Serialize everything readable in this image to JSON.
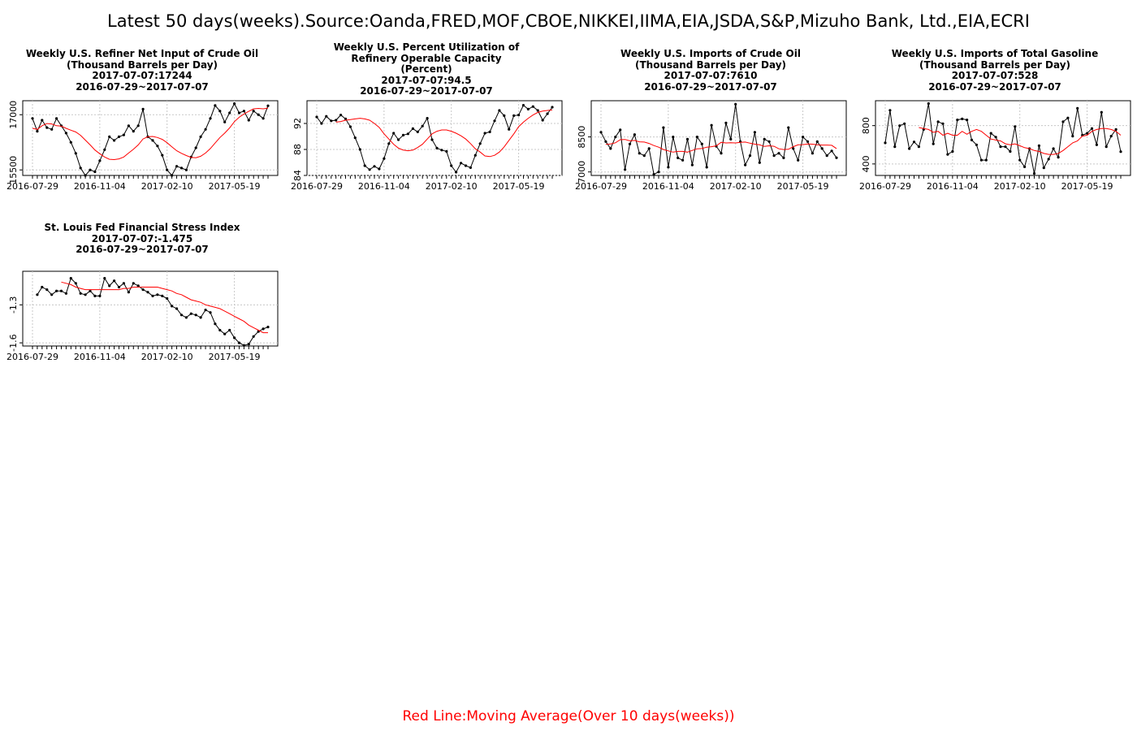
{
  "page": {
    "title": "Latest 50 days(weeks).Source:Oanda,FRED,MOF,CBOE,NIKKEI,IIMA,EIA,JSDA,S&P,Mizuho Bank, Ltd.,EIA,ECRI",
    "footer": "Red Line:Moving Average(Over 10 days(weeks))"
  },
  "colors": {
    "series": "#000000",
    "moving_average": "#ff0000",
    "grid": "#c8c8c8",
    "footer": "#ff0000"
  },
  "chart_data": [
    {
      "type": "line",
      "title_lines": [
        "Weekly U.S. Refiner Net Input of Crude Oil",
        "(Thousand Barrels per Day)",
        "2017-07-07:17244",
        "2016-07-29~2017-07-07"
      ],
      "x_start": "2016-07-29",
      "x_end": "2017-07-07",
      "x_ticks": [
        "2016-07-29",
        "2016-11-04",
        "2017-02-10",
        "2017-05-19"
      ],
      "y_ticks": [
        "15500",
        "17000"
      ],
      "ylim": [
        15350,
        17380
      ],
      "grid": true,
      "series": [
        {
          "name": "",
          "values": [
            16900,
            16550,
            16850,
            16650,
            16600,
            16900,
            16700,
            16500,
            16250,
            15950,
            15550,
            15350,
            15500,
            15450,
            15750,
            16050,
            16400,
            16300,
            16400,
            16450,
            16700,
            16550,
            16700,
            17150,
            16400,
            16300,
            16150,
            15900,
            15500,
            15350,
            15600,
            15550,
            15500,
            15850,
            16100,
            16400,
            16600,
            16900,
            17250,
            17100,
            16800,
            17050,
            17300,
            17050,
            17100,
            16850,
            17100,
            17000,
            16900,
            17244
          ]
        },
        {
          "name": "",
          "values": [
            16630,
            16600,
            16700,
            16760,
            16750,
            16700,
            16690,
            16630,
            16580,
            16530,
            16440,
            16310,
            16180,
            16040,
            15940,
            15850,
            15790,
            15780,
            15800,
            15850,
            15960,
            16060,
            16180,
            16340,
            16400,
            16410,
            16380,
            16330,
            16240,
            16130,
            16020,
            15950,
            15890,
            15840,
            15830,
            15870,
            15960,
            16080,
            16230,
            16380,
            16500,
            16640,
            16810,
            16930,
            17020,
            17090,
            17160,
            17170,
            17160,
            17180
          ]
        }
      ]
    },
    {
      "type": "line",
      "title_lines": [
        "Weekly U.S. Percent Utilization of",
        "Refinery Operable Capacity",
        "(Percent)",
        "2017-07-07:94.5",
        "2016-07-29~2017-07-07"
      ],
      "x_start": "2016-07-29",
      "x_end": "2017-07-07",
      "x_ticks": [
        "2016-07-29",
        "2016-11-04",
        "2017-02-10",
        "2017-05-19"
      ],
      "y_ticks": [
        "84",
        "88",
        "92"
      ],
      "ylim": [
        84,
        95.5
      ],
      "grid": true,
      "series": [
        {
          "name": "",
          "values": [
            93.0,
            92.0,
            93.1,
            92.4,
            92.5,
            93.3,
            92.7,
            91.5,
            89.8,
            88.0,
            85.5,
            84.9,
            85.4,
            85.0,
            86.6,
            88.9,
            90.5,
            89.5,
            90.2,
            90.4,
            91.2,
            90.7,
            91.6,
            92.8,
            89.5,
            88.2,
            87.9,
            87.7,
            85.5,
            84.5,
            85.9,
            85.5,
            85.2,
            87.1,
            88.9,
            90.5,
            90.7,
            92.4,
            94.0,
            93.2,
            91.1,
            93.2,
            93.3,
            94.8,
            94.2,
            94.6,
            94.0,
            92.5,
            93.5,
            94.5
          ]
        },
        {
          "name": "",
          "values": [
            92.2,
            92.3,
            92.5,
            92.6,
            92.7,
            92.8,
            92.7,
            92.5,
            92.0,
            91.4,
            90.4,
            89.6,
            88.8,
            88.2,
            87.9,
            87.8,
            87.9,
            88.3,
            88.8,
            89.6,
            90.4,
            90.8,
            91.0,
            91.0,
            90.8,
            90.5,
            90.1,
            89.6,
            88.9,
            88.1,
            87.6,
            87.0,
            86.9,
            87.1,
            87.6,
            88.4,
            89.4,
            90.4,
            91.5,
            92.2,
            92.8,
            93.3,
            93.7,
            93.9,
            94.0,
            94.1
          ]
        }
      ]
    },
    {
      "type": "line",
      "title_lines": [
        "Weekly U.S. Imports of Crude Oil",
        "(Thousand Barrels per Day)",
        "2017-07-07:7610",
        "2016-07-29~2017-07-07"
      ],
      "x_start": "2016-07-29",
      "x_end": "2017-07-07",
      "x_ticks": [
        "2016-07-29",
        "2016-11-04",
        "2017-02-10",
        "2017-05-19"
      ],
      "y_ticks": [
        "7000",
        "8500"
      ],
      "ylim": [
        6850,
        10050
      ],
      "grid": true,
      "series": [
        {
          "name": "",
          "values": [
            8700,
            8300,
            8000,
            8500,
            8800,
            7100,
            8200,
            8600,
            7800,
            7700,
            8000,
            6900,
            7000,
            8900,
            7200,
            8500,
            7600,
            7500,
            8400,
            7300,
            8500,
            8200,
            7200,
            9000,
            8100,
            7800,
            9100,
            8400,
            9900,
            8300,
            7300,
            7700,
            8700,
            7400,
            8400,
            8300,
            7700,
            7800,
            7600,
            8900,
            8000,
            7500,
            8500,
            8300,
            7800,
            8300,
            8000,
            7700,
            7900,
            7610
          ]
        },
        {
          "name": "",
          "values": [
            8180,
            8200,
            8250,
            8380,
            8390,
            8330,
            8350,
            8290,
            8280,
            8220,
            8130,
            8060,
            7960,
            7900,
            7850,
            7880,
            7880,
            7850,
            7920,
            7990,
            8000,
            8060,
            8080,
            8120,
            8270,
            8240,
            8250,
            8240,
            8270,
            8280,
            8230,
            8190,
            8160,
            8090,
            8120,
            8100,
            7990,
            7960,
            7970,
            8080,
            8160,
            8170,
            8200,
            8190,
            8160,
            8150,
            8150,
            8140,
            8000
          ]
        }
      ]
    },
    {
      "type": "line",
      "title_lines": [
        "Weekly U.S. Imports of Total Gasoline",
        "(Thousand Barrels per Day)",
        "2017-07-07:528",
        "2016-07-29~2017-07-07"
      ],
      "x_start": "2016-07-29",
      "x_end": "2017-07-07",
      "x_ticks": [
        "2016-07-29",
        "2016-11-04",
        "2017-02-10",
        "2017-05-19"
      ],
      "y_ticks": [
        "400",
        "800"
      ],
      "ylim": [
        280,
        1060
      ],
      "grid": true,
      "series": [
        {
          "name": "",
          "values": [
            620,
            960,
            580,
            800,
            820,
            560,
            630,
            580,
            760,
            1030,
            610,
            840,
            820,
            500,
            530,
            860,
            870,
            860,
            650,
            600,
            440,
            440,
            720,
            680,
            580,
            580,
            530,
            790,
            440,
            370,
            560,
            300,
            590,
            360,
            450,
            560,
            470,
            840,
            880,
            690,
            980,
            700,
            720,
            770,
            600,
            940,
            580,
            690,
            760,
            528
          ]
        },
        {
          "name": "",
          "values": [
            780,
            770,
            760,
            730,
            740,
            700,
            720,
            700,
            700,
            740,
            710,
            740,
            760,
            740,
            700,
            660,
            650,
            640,
            610,
            600,
            610,
            590,
            570,
            560,
            540,
            530,
            510,
            500,
            500,
            510,
            540,
            580,
            620,
            640,
            690,
            700,
            740,
            760,
            770,
            770,
            760,
            740,
            700
          ]
        }
      ]
    },
    {
      "type": "line",
      "title_lines": [
        "St. Louis Fed Financial Stress Index",
        "2017-07-07:-1.475",
        "2016-07-29~2017-07-07"
      ],
      "x_start": "2016-07-29",
      "x_end": "2017-07-07",
      "x_ticks": [
        "2016-07-29",
        "2016-11-04",
        "2017-02-10",
        "2017-05-19"
      ],
      "y_ticks": [
        "-1.6",
        "-1.3"
      ],
      "ylim": [
        -1.625,
        -1.035
      ],
      "grid": true,
      "series": [
        {
          "name": "",
          "values": [
            -1.22,
            -1.16,
            -1.18,
            -1.22,
            -1.19,
            -1.19,
            -1.21,
            -1.09,
            -1.13,
            -1.21,
            -1.22,
            -1.19,
            -1.23,
            -1.23,
            -1.09,
            -1.15,
            -1.11,
            -1.16,
            -1.13,
            -1.2,
            -1.13,
            -1.15,
            -1.18,
            -1.2,
            -1.23,
            -1.22,
            -1.23,
            -1.25,
            -1.31,
            -1.33,
            -1.38,
            -1.4,
            -1.37,
            -1.38,
            -1.4,
            -1.34,
            -1.36,
            -1.45,
            -1.5,
            -1.53,
            -1.5,
            -1.56,
            -1.6,
            -1.62,
            -1.61,
            -1.55,
            -1.51,
            -1.49,
            -1.475
          ]
        },
        {
          "name": "",
          "values": [
            -1.12,
            -1.13,
            -1.14,
            -1.16,
            -1.17,
            -1.18,
            -1.18,
            -1.18,
            -1.18,
            -1.18,
            -1.18,
            -1.18,
            -1.18,
            -1.17,
            -1.17,
            -1.16,
            -1.16,
            -1.16,
            -1.16,
            -1.16,
            -1.16,
            -1.17,
            -1.18,
            -1.19,
            -1.21,
            -1.22,
            -1.24,
            -1.26,
            -1.27,
            -1.28,
            -1.3,
            -1.31,
            -1.32,
            -1.33,
            -1.35,
            -1.37,
            -1.39,
            -1.41,
            -1.43,
            -1.46,
            -1.48,
            -1.5,
            -1.52,
            -1.52
          ]
        }
      ]
    }
  ]
}
